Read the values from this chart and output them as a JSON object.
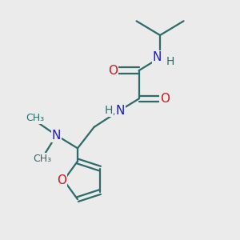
{
  "bg_color": "#ebebeb",
  "bond_color": "#2d6b6b",
  "N_color": "#1a1acc",
  "O_color": "#cc1a1a",
  "font_size": 10,
  "bond_width": 1.6,
  "figsize": [
    3.0,
    3.0
  ],
  "dpi": 100,
  "xlim": [
    0,
    10
  ],
  "ylim": [
    0,
    10
  ]
}
